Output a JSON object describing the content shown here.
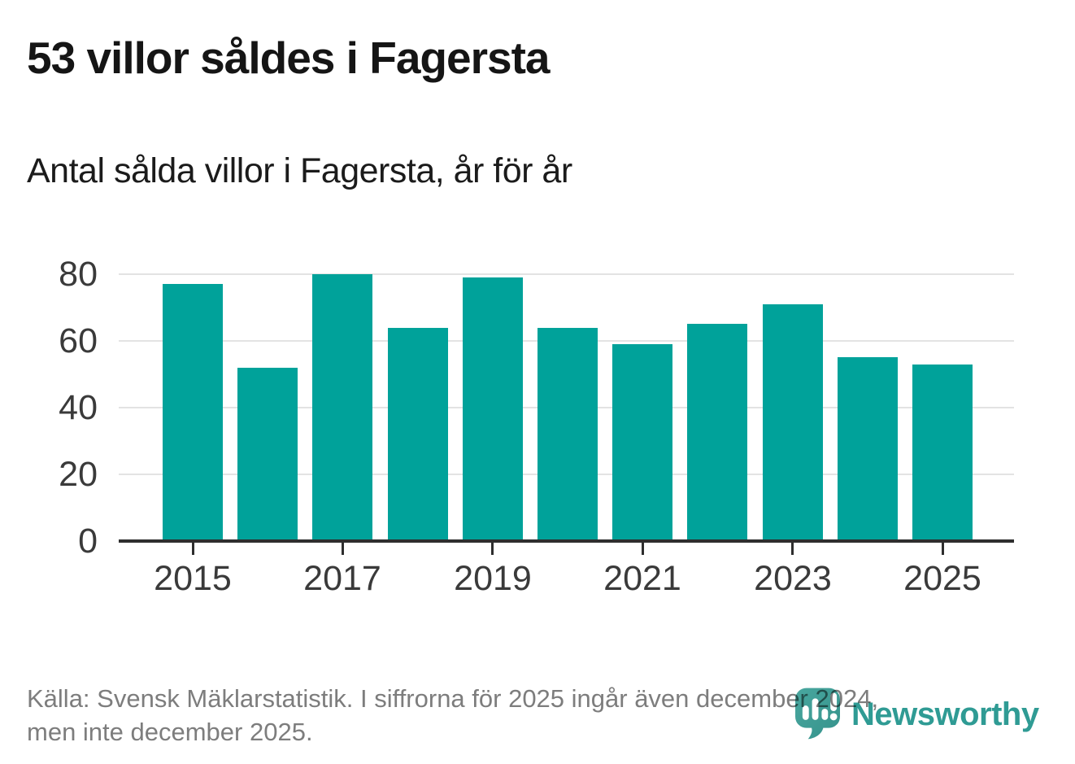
{
  "header": {
    "title": "53 villor såldes i Fagersta",
    "subtitle": "Antal sålda villor i Fagersta, år för år"
  },
  "chart_data": {
    "type": "bar",
    "title": "53 villor såldes i Fagersta",
    "subtitle": "Antal sålda villor i Fagersta, år för år",
    "categories": [
      2015,
      2016,
      2017,
      2018,
      2019,
      2020,
      2021,
      2022,
      2023,
      2024,
      2025
    ],
    "values": [
      77,
      52,
      80,
      64,
      79,
      64,
      59,
      65,
      71,
      55,
      53
    ],
    "xlabel": "",
    "ylabel": "",
    "ylim": [
      0,
      80
    ],
    "y_ticks": [
      0,
      20,
      40,
      60,
      80
    ],
    "x_tick_labels": [
      "2015",
      "2017",
      "2019",
      "2021",
      "2023",
      "2025"
    ],
    "grid": "horizontal",
    "legend": "none",
    "bar_color": "#00a29a",
    "axis_color": "#2e2e2e",
    "gridline_color": "#e3e3e3",
    "tick_label_color": "#3a3a3a"
  },
  "footer": {
    "line1": "Källa: Svensk Mäklarstatistik. I siffrorna för 2025 ingår även december 2024,",
    "line2": "men inte december 2025.",
    "text_color": "#7d7d7d"
  },
  "logo": {
    "wordmark": "Newsworthy",
    "icon": "newsworthy-pin-barchart-icon",
    "color": "#2f9b94"
  }
}
